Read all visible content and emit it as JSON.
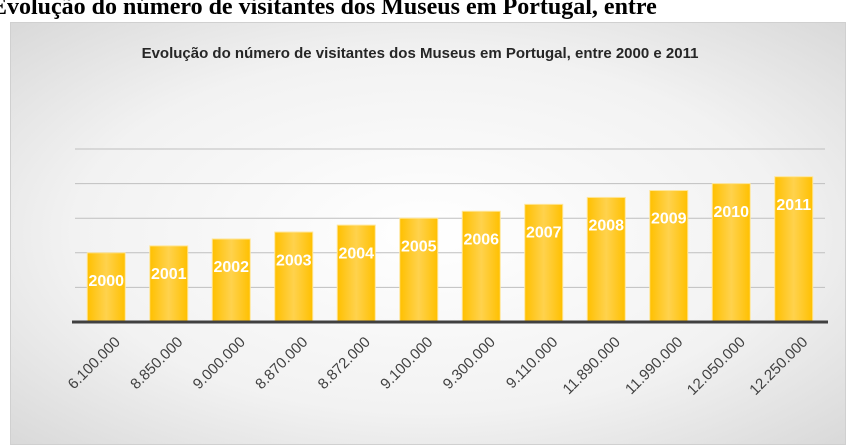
{
  "page_title": "Evolução do número de visitantes dos Museus em Portugal, entre",
  "chart_data": {
    "type": "bar",
    "title": "Evolução do número de visitantes dos Museus em Portugal, entre 2000 e 2011",
    "categories": [
      "6.100.000",
      "8.850.000",
      "9.000.000",
      "8.870.000",
      "8.872.000",
      "9.100.000",
      "9.300.000",
      "9.110.000",
      "11.890.000",
      "11.990.000",
      "12.050.000",
      "12.250.000"
    ],
    "values": [
      2000,
      2001,
      2002,
      2003,
      2004,
      2005,
      2006,
      2007,
      2008,
      2009,
      2010,
      2011
    ],
    "color": "#ffc000",
    "ylim": [
      1990,
      2015
    ],
    "yticks": [
      1990,
      1995,
      2000,
      2005,
      2010,
      2015
    ],
    "grid": true
  }
}
